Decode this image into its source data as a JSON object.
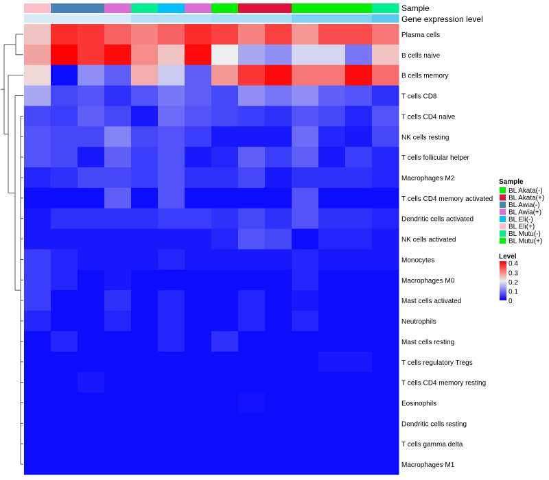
{
  "chart_data": {
    "type": "heatmap",
    "annotation_tracks": [
      "Sample",
      "Gene expression level"
    ],
    "legend_sample_title": "Sample",
    "legend_level_title": "Level",
    "level_ticks": [
      "0.4",
      "0.3",
      "0.2",
      "0.1",
      "0"
    ],
    "level_tick_values": [
      0.4,
      0.3,
      0.2,
      0.1,
      0
    ],
    "value_range": [
      0,
      0.42
    ],
    "sample_legend": [
      {
        "name": "BL Akata(-)",
        "color": "#00EE00"
      },
      {
        "name": "BL Akata(+)",
        "color": "#DC143C"
      },
      {
        "name": "BL Awia(-)",
        "color": "#4682B4"
      },
      {
        "name": "BL Awia(+)",
        "color": "#DA70D6"
      },
      {
        "name": "BL Eli(-)",
        "color": "#00BFFF"
      },
      {
        "name": "BL Eli(+)",
        "color": "#FFC0CB"
      },
      {
        "name": "BL Mutu(-)",
        "color": "#00EE90"
      },
      {
        "name": "BL Mutu(+)",
        "color": "#00EE00"
      }
    ],
    "column_samples": [
      "BL Eli(+)",
      "BL Awia(-)",
      "BL Awia(-)",
      "BL Awia(+)",
      "BL Mutu(-)",
      "BL Eli(-)",
      "BL Awia(+)",
      "BL Akata(-)",
      "BL Akata(+)",
      "BL Akata(+)",
      "BL Akata(-)",
      "BL Akata(-)",
      "BL Akata(-)",
      "BL Mutu(-)"
    ],
    "column_expression": [
      0.02,
      0.02,
      0.02,
      0.02,
      0.1,
      0.1,
      0.1,
      0.12,
      0.12,
      0.12,
      0.22,
      0.22,
      0.22,
      0.3
    ],
    "rows": [
      "Plasma cells",
      "B cells naive",
      "B cells memory",
      "T cells CD8",
      "T cells CD4 naive",
      "NK cells resting",
      "T cells follicular helper",
      "Macrophages M2",
      "T cells CD4 memory activated",
      "Dendritic cells activated",
      "NK cells activated",
      "Monocytes",
      "Macrophages M0",
      "Mast cells activated",
      "Neutrophils",
      "Mast cells resting",
      "T cells regulatory  Tregs",
      "T cells CD4 memory resting",
      "Eosinophils",
      "Dendritic cells resting",
      "T cells gamma delta",
      "Macrophages M1"
    ],
    "values": [
      [
        0.24,
        0.38,
        0.37,
        0.33,
        0.3,
        0.33,
        0.38,
        0.36,
        0.3,
        0.36,
        0.28,
        0.35,
        0.35,
        0.31
      ],
      [
        0.27,
        0.42,
        0.37,
        0.41,
        0.29,
        0.24,
        0.41,
        0.2,
        0.14,
        0.12,
        0.18,
        0.18,
        0.1,
        0.24
      ],
      [
        0.22,
        0.01,
        0.12,
        0.08,
        0.26,
        0.17,
        0.08,
        0.28,
        0.37,
        0.41,
        0.31,
        0.31,
        0.41,
        0.32
      ],
      [
        0.14,
        0.06,
        0.07,
        0.04,
        0.07,
        0.1,
        0.08,
        0.06,
        0.12,
        0.1,
        0.12,
        0.08,
        0.07,
        0.04
      ],
      [
        0.06,
        0.05,
        0.08,
        0.06,
        0.02,
        0.09,
        0.07,
        0.06,
        0.05,
        0.04,
        0.07,
        0.06,
        0.03,
        0.07
      ],
      [
        0.07,
        0.06,
        0.06,
        0.11,
        0.06,
        0.07,
        0.05,
        0.02,
        0.02,
        0.02,
        0.09,
        0.03,
        0.02,
        0.06
      ],
      [
        0.07,
        0.06,
        0.02,
        0.08,
        0.05,
        0.07,
        0.02,
        0.03,
        0.08,
        0.05,
        0.08,
        0.02,
        0.05,
        0.03
      ],
      [
        0.03,
        0.04,
        0.06,
        0.06,
        0.05,
        0.07,
        0.04,
        0.04,
        0.06,
        0.02,
        0.04,
        0.04,
        0.04,
        0.03
      ],
      [
        0.01,
        0.01,
        0.01,
        0.08,
        0.01,
        0.07,
        0.01,
        0.01,
        0.01,
        0.01,
        0.07,
        0.01,
        0.01,
        0.01
      ],
      [
        0.02,
        0.04,
        0.04,
        0.04,
        0.04,
        0.05,
        0.05,
        0.04,
        0.06,
        0.04,
        0.07,
        0.04,
        0.04,
        0.03
      ],
      [
        0.02,
        0.02,
        0.02,
        0.02,
        0.02,
        0.02,
        0.02,
        0.03,
        0.07,
        0.06,
        0.01,
        0.03,
        0.03,
        0.02
      ],
      [
        0.05,
        0.03,
        0.02,
        0.02,
        0.02,
        0.03,
        0.02,
        0.02,
        0.02,
        0.02,
        0.03,
        0.02,
        0.02,
        0.02
      ],
      [
        0.05,
        0.03,
        0.01,
        0.02,
        0.01,
        0.01,
        0.01,
        0.01,
        0.01,
        0.01,
        0.03,
        0.01,
        0.01,
        0.01
      ],
      [
        0.05,
        0.01,
        0.01,
        0.04,
        0.01,
        0.03,
        0.01,
        0.01,
        0.03,
        0.01,
        0.02,
        0.01,
        0.01,
        0.01
      ],
      [
        0.03,
        0.01,
        0.01,
        0.03,
        0.01,
        0.03,
        0.01,
        0.01,
        0.03,
        0.01,
        0.03,
        0.01,
        0.01,
        0.01
      ],
      [
        0.01,
        0.03,
        0.01,
        0.01,
        0.01,
        0.03,
        0.01,
        0.04,
        0.01,
        0.01,
        0.01,
        0.01,
        0.01,
        0.01
      ],
      [
        0.01,
        0.01,
        0.01,
        0.01,
        0.01,
        0.01,
        0.01,
        0.01,
        0.01,
        0.01,
        0.01,
        0.02,
        0.02,
        0.01
      ],
      [
        0.01,
        0.01,
        0.02,
        0.01,
        0.01,
        0.01,
        0.01,
        0.01,
        0.01,
        0.01,
        0.01,
        0.01,
        0.01,
        0.01
      ],
      [
        0.01,
        0.01,
        0.01,
        0.01,
        0.01,
        0.01,
        0.01,
        0.01,
        0.015,
        0.01,
        0.01,
        0.01,
        0.01,
        0.01
      ],
      [
        0.01,
        0.01,
        0.01,
        0.01,
        0.01,
        0.01,
        0.01,
        0.01,
        0.01,
        0.01,
        0.01,
        0.01,
        0.01,
        0.01
      ],
      [
        0.01,
        0.01,
        0.01,
        0.01,
        0.01,
        0.01,
        0.01,
        0.01,
        0.01,
        0.01,
        0.01,
        0.01,
        0.01,
        0.01
      ],
      [
        0.01,
        0.01,
        0.01,
        0.01,
        0.01,
        0.01,
        0.01,
        0.01,
        0.01,
        0.01,
        0.01,
        0.01,
        0.01,
        0.01
      ]
    ],
    "colors": {
      "low": "#0000FF",
      "mid": "#EEEEEE",
      "high": "#FF0000",
      "expr_low": "#DDEEF7",
      "expr_high": "#5BC8F0"
    }
  }
}
